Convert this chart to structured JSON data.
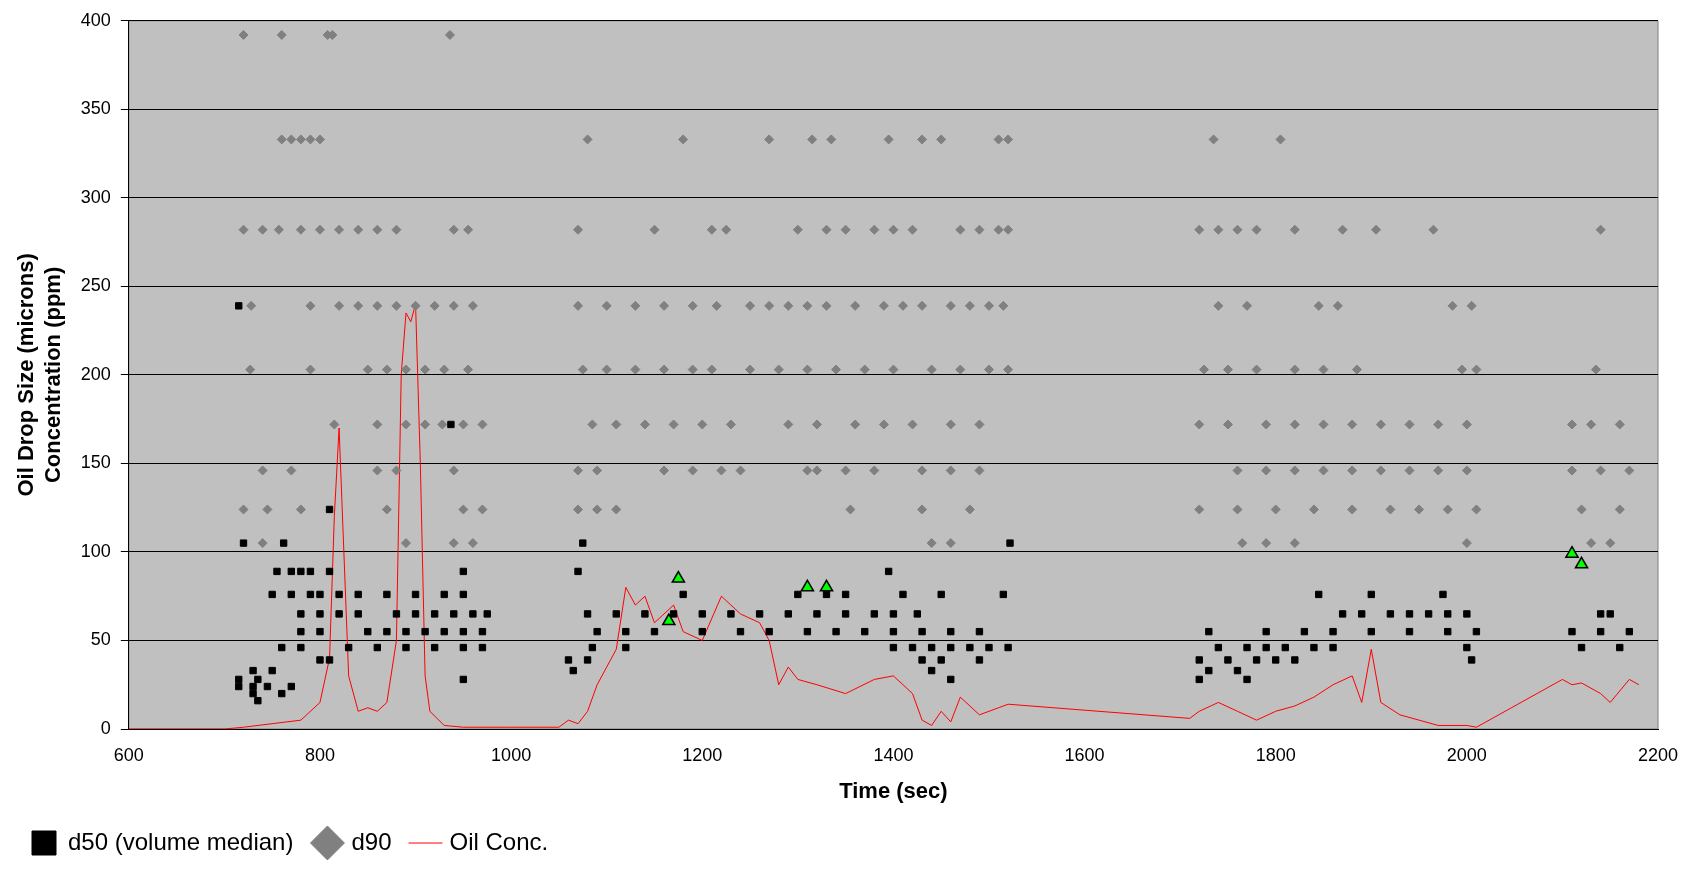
{
  "chart_data": {
    "type": "scatter",
    "xlabel": "Time (sec)",
    "ylabel": "Oil Drop Size (microns)\nConcentration (ppm)",
    "xlim": [
      600,
      2200
    ],
    "xticks": [
      600,
      800,
      1000,
      1200,
      1400,
      1600,
      1800,
      2000,
      2200
    ],
    "ylim": [
      0,
      400
    ],
    "yticks": [
      0,
      50,
      100,
      150,
      200,
      250,
      300,
      350,
      400
    ],
    "grid": "y",
    "legend": "bottom left",
    "series": [
      {
        "name": "d50 (volume median)",
        "marker": "square",
        "color": "#000000",
        "x": [
          715,
          937,
          810,
          720,
          762,
          1075,
          1522,
          755,
          770,
          780,
          790,
          810,
          950,
          1070,
          1395,
          750,
          770,
          790,
          800,
          820,
          840,
          870,
          900,
          930,
          950,
          1180,
          1300,
          1330,
          1350,
          1410,
          1450,
          1515,
          1845,
          1900,
          1975,
          780,
          800,
          820,
          840,
          880,
          900,
          920,
          940,
          960,
          975,
          1080,
          1110,
          1140,
          1170,
          1200,
          1230,
          1260,
          1290,
          1320,
          1350,
          1380,
          1400,
          1425,
          1870,
          1890,
          1920,
          1940,
          1960,
          1980,
          2000,
          2140,
          2150,
          780,
          800,
          850,
          870,
          890,
          910,
          930,
          950,
          970,
          1090,
          1120,
          1150,
          1200,
          1240,
          1270,
          1310,
          1340,
          1370,
          1400,
          1430,
          1460,
          1490,
          1730,
          1790,
          1830,
          1860,
          1900,
          1940,
          1980,
          2010,
          2110,
          2140,
          2170,
          760,
          780,
          830,
          860,
          890,
          920,
          950,
          970,
          1085,
          1120,
          1400,
          1420,
          1440,
          1460,
          1480,
          1500,
          1520,
          1740,
          1770,
          1790,
          1810,
          1840,
          1860,
          2000,
          2120,
          2160,
          800,
          810,
          1060,
          1080,
          1430,
          1450,
          1490,
          1720,
          1750,
          1780,
          1800,
          1820,
          2005,
          730,
          750,
          1065,
          1440,
          1730,
          1760,
          715,
          735,
          950,
          1460,
          1720,
          1770,
          715,
          730,
          745,
          770,
          730,
          760,
          735
        ],
        "values": [
          239,
          172,
          124,
          105,
          105,
          105,
          105,
          89,
          89,
          89,
          89,
          89,
          89,
          89,
          89,
          76,
          76,
          76,
          76,
          76,
          76,
          76,
          76,
          76,
          76,
          76,
          76,
          76,
          76,
          76,
          76,
          76,
          76,
          76,
          76,
          65,
          65,
          65,
          65,
          65,
          65,
          65,
          65,
          65,
          65,
          65,
          65,
          65,
          65,
          65,
          65,
          65,
          65,
          65,
          65,
          65,
          65,
          65,
          65,
          65,
          65,
          65,
          65,
          65,
          65,
          65,
          65,
          55,
          55,
          55,
          55,
          55,
          55,
          55,
          55,
          55,
          55,
          55,
          55,
          55,
          55,
          55,
          55,
          55,
          55,
          55,
          55,
          55,
          55,
          55,
          55,
          55,
          55,
          55,
          55,
          55,
          55,
          55,
          55,
          55,
          46,
          46,
          46,
          46,
          46,
          46,
          46,
          46,
          46,
          46,
          46,
          46,
          46,
          46,
          46,
          46,
          46,
          46,
          46,
          46,
          46,
          46,
          46,
          46,
          46,
          46,
          39,
          39,
          39,
          39,
          39,
          39,
          39,
          39,
          39,
          39,
          39,
          39,
          39,
          33,
          33,
          33,
          33,
          33,
          33,
          28,
          28,
          28,
          28,
          28,
          28,
          24,
          24,
          24,
          24,
          20,
          20,
          16
        ]
      },
      {
        "name": "d90",
        "marker": "diamond",
        "color": "#808080",
        "x": [
          720,
          760,
          808,
          813,
          936,
          760,
          770,
          780,
          790,
          800,
          1080,
          1180,
          1270,
          1315,
          1335,
          1395,
          1430,
          1450,
          1510,
          1520,
          1735,
          1805,
          720,
          740,
          757,
          780,
          800,
          820,
          840,
          860,
          880,
          940,
          955,
          1070,
          1150,
          1210,
          1225,
          1300,
          1330,
          1350,
          1380,
          1400,
          1420,
          1470,
          1490,
          1510,
          1520,
          1720,
          1740,
          1760,
          1780,
          1820,
          1870,
          1905,
          1965,
          2140,
          728,
          790,
          820,
          840,
          860,
          880,
          900,
          920,
          940,
          960,
          1070,
          1100,
          1130,
          1160,
          1190,
          1215,
          1250,
          1270,
          1290,
          1310,
          1330,
          1360,
          1390,
          1410,
          1430,
          1460,
          1480,
          1500,
          1515,
          1740,
          1770,
          1845,
          1865,
          1985,
          2005,
          727,
          790,
          850,
          870,
          890,
          910,
          930,
          955,
          1075,
          1100,
          1130,
          1160,
          1190,
          1210,
          1250,
          1280,
          1310,
          1340,
          1370,
          1400,
          1440,
          1470,
          1500,
          1520,
          1725,
          1750,
          1780,
          1820,
          1850,
          1885,
          1995,
          2010,
          2135,
          815,
          860,
          890,
          910,
          928,
          950,
          970,
          1085,
          1110,
          1140,
          1170,
          1200,
          1230,
          1290,
          1320,
          1360,
          1390,
          1420,
          1460,
          1490,
          1720,
          1750,
          1790,
          1820,
          1850,
          1880,
          1910,
          1940,
          1970,
          2000,
          2110,
          2130,
          2160,
          740,
          770,
          860,
          880,
          940,
          1070,
          1090,
          1160,
          1190,
          1220,
          1240,
          1310,
          1320,
          1350,
          1380,
          1430,
          1460,
          1490,
          1760,
          1790,
          1820,
          1850,
          1880,
          1910,
          1940,
          1970,
          2000,
          2110,
          2140,
          2170,
          720,
          745,
          780,
          870,
          950,
          970,
          1070,
          1090,
          1110,
          1355,
          1430,
          1480,
          1720,
          1760,
          1800,
          1840,
          1880,
          1920,
          1950,
          1980,
          2010,
          2120,
          2160,
          740,
          890,
          940,
          960,
          1440,
          1460,
          1765,
          1790,
          1820,
          2000,
          2130,
          2150
        ],
        "values": [
          392,
          392,
          392,
          392,
          392,
          333,
          333,
          333,
          333,
          333,
          333,
          333,
          333,
          333,
          333,
          333,
          333,
          333,
          333,
          333,
          333,
          333,
          282,
          282,
          282,
          282,
          282,
          282,
          282,
          282,
          282,
          282,
          282,
          282,
          282,
          282,
          282,
          282,
          282,
          282,
          282,
          282,
          282,
          282,
          282,
          282,
          282,
          282,
          282,
          282,
          282,
          282,
          282,
          282,
          282,
          282,
          239,
          239,
          239,
          239,
          239,
          239,
          239,
          239,
          239,
          239,
          239,
          239,
          239,
          239,
          239,
          239,
          239,
          239,
          239,
          239,
          239,
          239,
          239,
          239,
          239,
          239,
          239,
          239,
          239,
          239,
          239,
          239,
          239,
          239,
          239,
          203,
          203,
          203,
          203,
          203,
          203,
          203,
          203,
          203,
          203,
          203,
          203,
          203,
          203,
          203,
          203,
          203,
          203,
          203,
          203,
          203,
          203,
          203,
          203,
          203,
          203,
          203,
          203,
          203,
          203,
          203,
          203,
          203,
          172,
          172,
          172,
          172,
          172,
          172,
          172,
          172,
          172,
          172,
          172,
          172,
          172,
          172,
          172,
          172,
          172,
          172,
          172,
          172,
          172,
          172,
          172,
          172,
          172,
          172,
          172,
          172,
          172,
          172,
          172,
          172,
          172,
          146,
          146,
          146,
          146,
          146,
          146,
          146,
          146,
          146,
          146,
          146,
          146,
          146,
          146,
          146,
          146,
          146,
          146,
          146,
          146,
          146,
          146,
          146,
          146,
          146,
          146,
          146,
          146,
          146,
          146,
          124,
          124,
          124,
          124,
          124,
          124,
          124,
          124,
          124,
          124,
          124,
          124,
          124,
          124,
          124,
          124,
          124,
          124,
          124,
          124,
          124,
          124,
          124,
          105,
          105,
          105,
          105,
          105,
          105,
          105,
          105,
          105,
          105,
          105,
          105
        ]
      },
      {
        "name": "Oil Conc.",
        "type": "line",
        "marker": "none",
        "color": "#ff0000",
        "x": [
          600,
          700,
          720,
          750,
          780,
          800,
          810,
          815,
          820,
          825,
          830,
          840,
          850,
          860,
          870,
          880,
          885,
          890,
          895,
          900,
          905,
          910,
          915,
          930,
          950,
          1000,
          1050,
          1060,
          1070,
          1080,
          1090,
          1100,
          1110,
          1120,
          1130,
          1140,
          1150,
          1160,
          1170,
          1180,
          1200,
          1220,
          1240,
          1260,
          1270,
          1280,
          1290,
          1300,
          1320,
          1350,
          1380,
          1400,
          1420,
          1430,
          1440,
          1450,
          1460,
          1470,
          1490,
          1510,
          1520,
          1710,
          1720,
          1740,
          1760,
          1780,
          1800,
          1820,
          1840,
          1860,
          1880,
          1890,
          1900,
          1910,
          1930,
          1950,
          1970,
          2000,
          2010,
          2100,
          2110,
          2120,
          2140,
          2150,
          2170,
          2180
        ],
        "values": [
          0,
          0,
          1,
          3,
          5,
          15,
          40,
          120,
          170,
          100,
          30,
          10,
          12,
          10,
          15,
          50,
          200,
          235,
          230,
          240,
          150,
          30,
          10,
          2,
          1,
          1,
          1,
          5,
          3,
          10,
          25,
          35,
          45,
          80,
          70,
          75,
          60,
          65,
          70,
          55,
          50,
          75,
          65,
          60,
          50,
          25,
          35,
          28,
          25,
          20,
          28,
          30,
          20,
          5,
          2,
          10,
          4,
          18,
          8,
          12,
          14,
          6,
          10,
          15,
          10,
          5,
          10,
          13,
          18,
          25,
          30,
          15,
          45,
          15,
          8,
          5,
          2,
          2,
          1,
          28,
          25,
          26,
          20,
          15,
          28,
          25
        ]
      },
      {
        "marker": "triangle",
        "color": "#00ff00",
        "x": [
          1165,
          1175,
          1310,
          1330,
          2110,
          2120
        ],
        "values": [
          61,
          85,
          80,
          80,
          99,
          93
        ]
      }
    ]
  }
}
